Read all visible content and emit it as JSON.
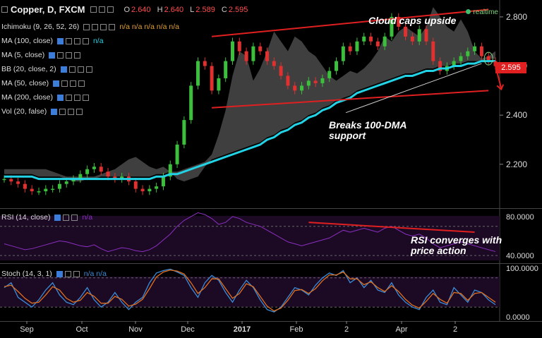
{
  "header": {
    "title": "Copper, D, FXCM",
    "ohlc": [
      {
        "label": "O",
        "value": "2.640"
      },
      {
        "label": "H",
        "value": "2.640"
      },
      {
        "label": "L",
        "value": "2.589"
      },
      {
        "label": "C",
        "value": "2.595"
      }
    ]
  },
  "indicators": [
    {
      "label": "Ichimoku (9, 26, 52, 26)",
      "value": "n/a n/a n/a n/a n/a"
    },
    {
      "label": "MA (100, close)",
      "value": "n/a"
    },
    {
      "label": "MA (5, close)",
      "value": ""
    },
    {
      "label": "BB (20, close, 2)",
      "value": ""
    },
    {
      "label": "MA (50, close)",
      "value": ""
    },
    {
      "label": "MA (200, close)",
      "value": ""
    },
    {
      "label": "Vol (20, false)",
      "value": ""
    }
  ],
  "rsi_label": "RSI (14, close)",
  "rsi_value": "n/a",
  "stoch_label": "Stoch (14, 3, 1)",
  "stoch_value": "n/a n/a",
  "realtime": "realtime",
  "last_price": "2.595",
  "annotations": {
    "cloud": "Cloud caps upside",
    "dma_line1": "Breaks 100-DMA",
    "dma_line2": "support",
    "rsi_line1": "RSI converges with",
    "rsi_line2": "price action"
  },
  "colors": {
    "up": "#3cbf3c",
    "down": "#e03030",
    "ma100": "#22d3e6",
    "cloud": "#5a5a5a",
    "trendline": "#e02020",
    "rsi_line": "#8a2fc0",
    "stoch_k": "#3b8bd8",
    "stoch_d": "#e07020",
    "panel_bg": "#1c0a24"
  },
  "chart_data": {
    "type": "line",
    "title": "Copper, D, FXCM",
    "x_labels": [
      "Sep",
      "Oct",
      "Nov",
      "Dec",
      "2017",
      "Feb",
      "2",
      "Apr",
      "2"
    ],
    "price": {
      "y_ticks": [
        "2.800",
        "2.600",
        "2.400",
        "2.200"
      ],
      "ylim": [
        2.05,
        2.84
      ],
      "series": [
        {
          "values": [
            2.14,
            2.13,
            2.12,
            2.1,
            2.09,
            2.09,
            2.1,
            2.1,
            2.12,
            2.13,
            2.14,
            2.16,
            2.18,
            2.19,
            2.17,
            2.15,
            2.14,
            2.15,
            2.13,
            2.1,
            2.09,
            2.1,
            2.11,
            2.15,
            2.2,
            2.28,
            2.38,
            2.52,
            2.62,
            2.6,
            2.5,
            2.55,
            2.62,
            2.7,
            2.66,
            2.62,
            2.68,
            2.66,
            2.62,
            2.6,
            2.56,
            2.52,
            2.5,
            2.52,
            2.54,
            2.53,
            2.55,
            2.58,
            2.62,
            2.68,
            2.66,
            2.7,
            2.72,
            2.7,
            2.68,
            2.72,
            2.8,
            2.76,
            2.72,
            2.7,
            2.75,
            2.7,
            2.62,
            2.58,
            2.6,
            2.62,
            2.64,
            2.66,
            2.68,
            2.64,
            2.62,
            2.6
          ]
        },
        {
          "name": "MA (100, close)",
          "values": [
            2.15,
            2.15,
            2.15,
            2.15,
            2.15,
            2.14,
            2.14,
            2.14,
            2.14,
            2.14,
            2.14,
            2.14,
            2.14,
            2.14,
            2.14,
            2.14,
            2.14,
            2.14,
            2.14,
            2.14,
            2.14,
            2.14,
            2.15,
            2.15,
            2.16,
            2.16,
            2.17,
            2.18,
            2.19,
            2.2,
            2.21,
            2.22,
            2.23,
            2.24,
            2.25,
            2.26,
            2.27,
            2.28,
            2.3,
            2.31,
            2.33,
            2.34,
            2.36,
            2.37,
            2.39,
            2.4,
            2.42,
            2.43,
            2.45,
            2.46,
            2.47,
            2.49,
            2.5,
            2.51,
            2.52,
            2.53,
            2.54,
            2.55,
            2.56,
            2.56,
            2.57,
            2.58,
            2.58,
            2.59,
            2.59,
            2.6,
            2.6,
            2.61,
            2.61,
            2.62,
            2.62,
            2.62
          ]
        }
      ],
      "trendlines": [
        {
          "from": [
            30,
            2.43
          ],
          "to": [
            70,
            2.5
          ]
        },
        {
          "from": [
            30,
            2.72
          ],
          "to": [
            70,
            2.83
          ]
        }
      ]
    },
    "rsi": {
      "y_ticks": [
        "80.0000",
        "40.0000"
      ],
      "ylim": [
        35,
        85
      ],
      "values": [
        52,
        50,
        48,
        46,
        47,
        49,
        51,
        53,
        55,
        54,
        52,
        50,
        49,
        51,
        47,
        44,
        46,
        48,
        47,
        45,
        44,
        46,
        50,
        56,
        62,
        70,
        76,
        80,
        84,
        82,
        78,
        72,
        74,
        80,
        78,
        74,
        72,
        70,
        66,
        62,
        58,
        54,
        52,
        50,
        52,
        54,
        56,
        58,
        62,
        66,
        64,
        66,
        68,
        66,
        64,
        68,
        70,
        66,
        62,
        60,
        62,
        58,
        52,
        48,
        50,
        52,
        54,
        52,
        50,
        48,
        46,
        44
      ]
    },
    "stoch": {
      "y_ticks": [
        "100.0000",
        "0.0000"
      ],
      "ylim": [
        0,
        100
      ],
      "k": [
        60,
        70,
        40,
        30,
        20,
        35,
        55,
        70,
        45,
        30,
        25,
        40,
        60,
        35,
        20,
        30,
        50,
        30,
        15,
        30,
        40,
        70,
        90,
        95,
        98,
        92,
        85,
        60,
        40,
        70,
        85,
        75,
        50,
        30,
        55,
        75,
        60,
        35,
        15,
        10,
        20,
        40,
        60,
        55,
        45,
        65,
        80,
        90,
        85,
        95,
        70,
        80,
        60,
        75,
        55,
        50,
        70,
        45,
        30,
        20,
        15,
        40,
        55,
        30,
        25,
        60,
        45,
        30,
        55,
        50,
        35,
        25
      ],
      "d": [
        62,
        65,
        52,
        38,
        28,
        30,
        45,
        62,
        55,
        38,
        30,
        34,
        50,
        42,
        28,
        28,
        42,
        36,
        22,
        26,
        36,
        58,
        82,
        92,
        96,
        94,
        88,
        70,
        48,
        60,
        78,
        78,
        58,
        38,
        48,
        68,
        62,
        42,
        22,
        12,
        18,
        34,
        54,
        56,
        48,
        58,
        74,
        86,
        86,
        92,
        78,
        78,
        66,
        72,
        60,
        52,
        64,
        52,
        36,
        24,
        18,
        32,
        48,
        36,
        28,
        50,
        48,
        34,
        48,
        50,
        40,
        30
      ]
    }
  }
}
